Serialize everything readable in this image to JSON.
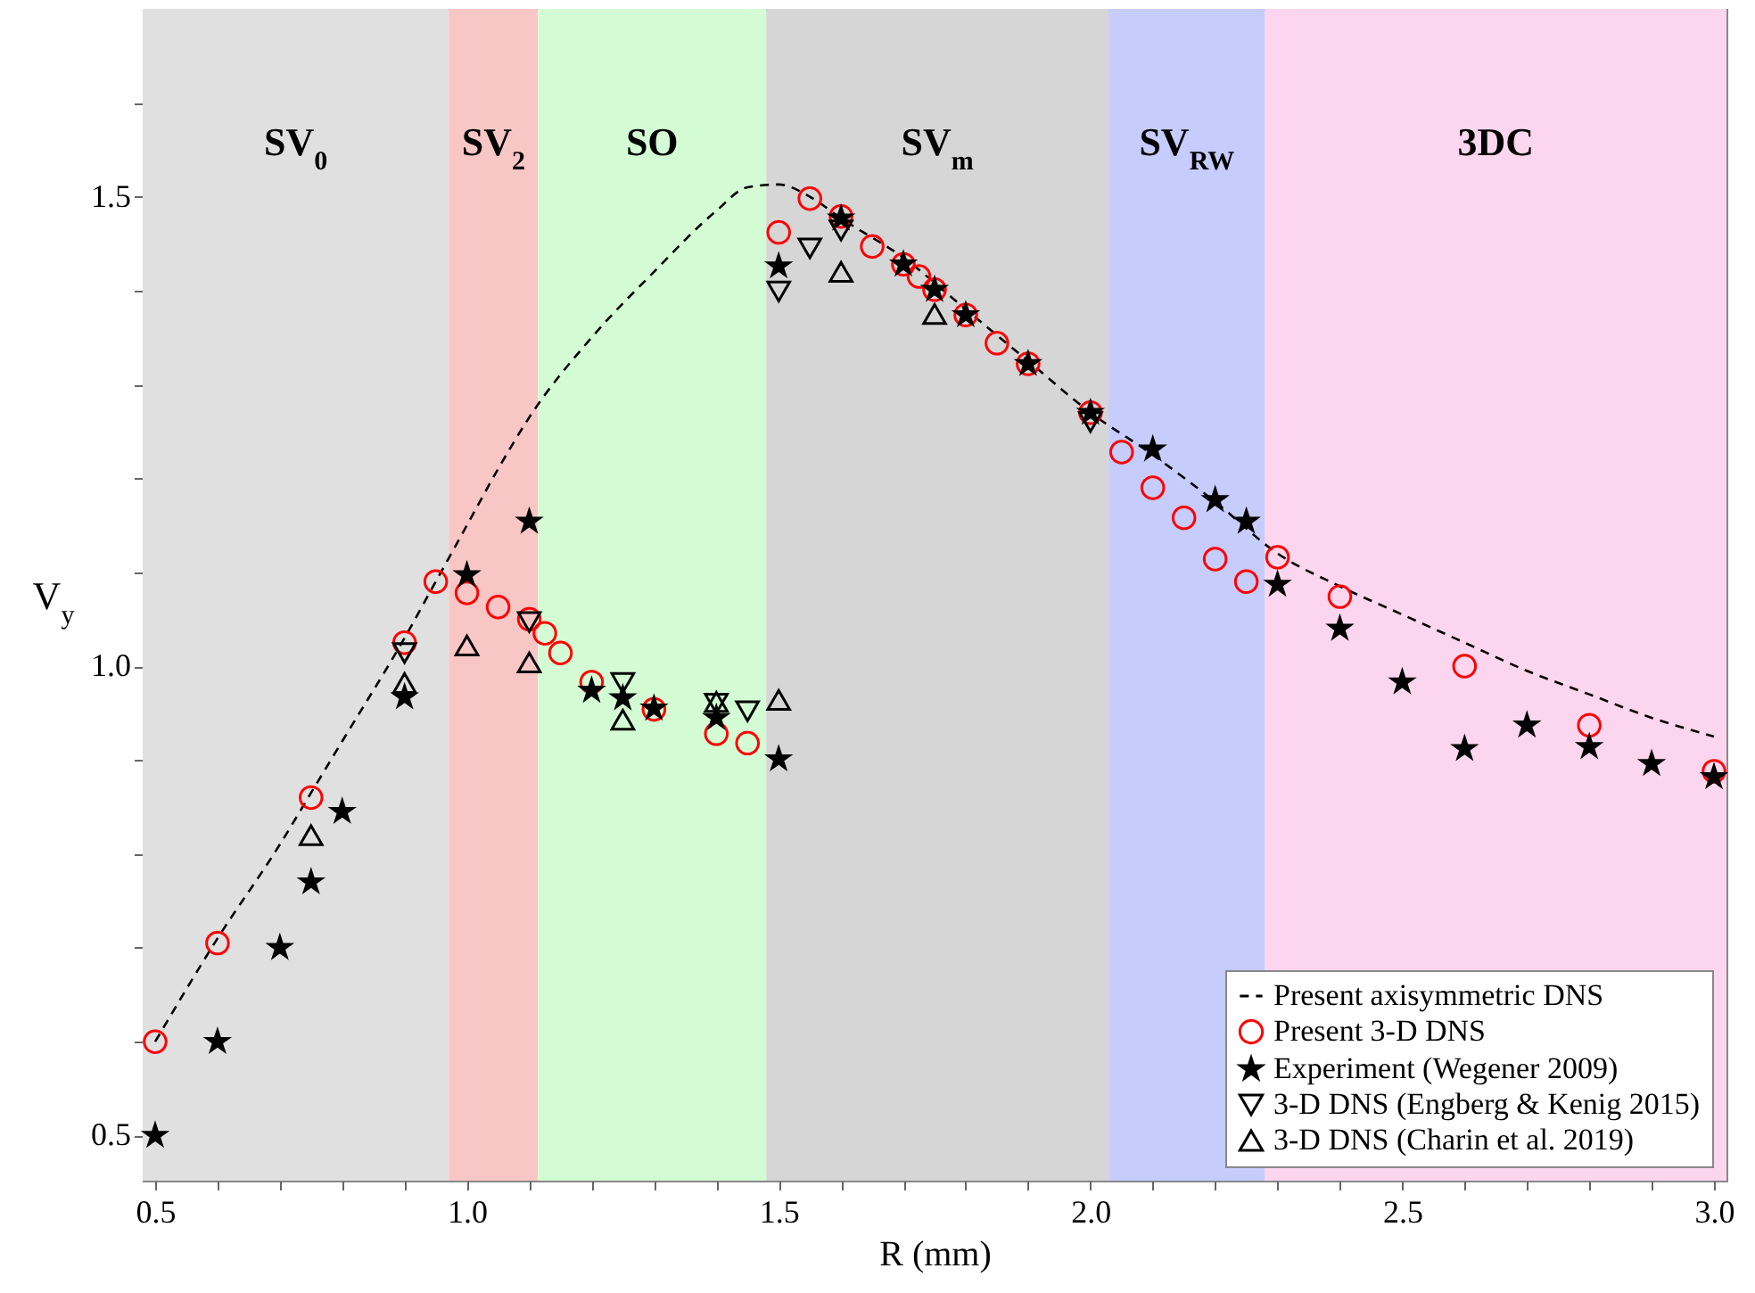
{
  "chart_data": {
    "type": "scatter",
    "xlabel": "R (mm)",
    "ylabel": "V$_{y}$",
    "xlim": [
      0.48,
      3.02
    ],
    "ylim": [
      0.452,
      1.7
    ],
    "xticks": [
      0.5,
      {
        "value": 0.6,
        "label": null
      },
      {
        "value": 0.7,
        "label": null
      },
      {
        "value": 0.8,
        "label": null
      },
      {
        "value": 0.9,
        "label": null
      },
      {
        "value": 1.0,
        "label": "1.0"
      },
      {
        "value": 1.1,
        "label": null
      },
      {
        "value": 1.2,
        "label": null
      },
      {
        "value": 1.3,
        "label": null
      },
      {
        "value": 1.4,
        "label": null
      },
      1.5,
      {
        "value": 1.6,
        "label": null
      },
      {
        "value": 1.7,
        "label": null
      },
      {
        "value": 1.8,
        "label": null
      },
      {
        "value": 1.9,
        "label": null
      },
      {
        "value": 2.0,
        "label": "2.0"
      },
      {
        "value": 2.1,
        "label": null
      },
      {
        "value": 2.2,
        "label": null
      },
      {
        "value": 2.3,
        "label": null
      },
      {
        "value": 2.4,
        "label": null
      },
      2.5,
      {
        "value": 2.6,
        "label": null
      },
      {
        "value": 2.7,
        "label": null
      },
      {
        "value": 2.8,
        "label": null
      },
      {
        "value": 2.9,
        "label": null
      },
      {
        "value": 3.0,
        "label": "3.0"
      }
    ],
    "yticks": [
      0.5,
      {
        "value": 0.6,
        "label": null
      },
      {
        "value": 0.7,
        "label": null
      },
      {
        "value": 0.8,
        "label": null
      },
      {
        "value": 0.9,
        "label": null
      },
      {
        "value": 1.0,
        "label": "1.0"
      },
      {
        "value": 1.1,
        "label": null
      },
      {
        "value": 1.2,
        "label": null
      },
      {
        "value": 1.3,
        "label": null
      },
      {
        "value": 1.4,
        "label": null
      },
      1.5,
      {
        "value": 1.6,
        "label": null
      }
    ],
    "grid": false,
    "legend": "bottom right",
    "bands": [
      {
        "axis": "x",
        "from": 0.48,
        "to": 0.971,
        "label": "SV$_{0}$",
        "color": "#e0e0e0"
      },
      {
        "axis": "x",
        "from": 0.971,
        "to": 1.114,
        "label": "SV$_{2}$",
        "color": "#f9c6c6"
      },
      {
        "axis": "x",
        "from": 1.114,
        "to": 1.48,
        "label": "SO",
        "color": "#d4fcd4"
      },
      {
        "axis": "x",
        "from": 1.48,
        "to": 2.029,
        "label": "SV$_{m}$",
        "color": "#d6d6d6"
      },
      {
        "axis": "x",
        "from": 2.029,
        "to": 2.28,
        "label": "SV$_{RW}$",
        "color": "#c6ccfc"
      },
      {
        "axis": "x",
        "from": 2.28,
        "to": 3.02,
        "label": "3DC",
        "color": "#fcd6ee"
      }
    ],
    "series": [
      {
        "name": "Present axisymmetric DNS",
        "type": "line",
        "line_style": "dashed",
        "marker": "none",
        "color": "#000000",
        "x": [
          0.5,
          0.6,
          0.7,
          0.75,
          0.8,
          0.9,
          0.95,
          1.0,
          1.05,
          1.1,
          1.2,
          1.3,
          1.4,
          1.45,
          1.5,
          1.55,
          1.6,
          1.7,
          1.8,
          1.9,
          2.0,
          2.1,
          2.2,
          2.3,
          2.4,
          2.5,
          2.6,
          2.7,
          2.8,
          2.9,
          3.0
        ],
        "values": [
          0.6,
          0.71,
          0.81,
          0.865,
          0.92,
          1.03,
          1.09,
          1.15,
          1.21,
          1.265,
          1.35,
          1.42,
          1.485,
          1.51,
          1.513,
          1.5,
          1.477,
          1.435,
          1.38,
          1.325,
          1.27,
          1.225,
          1.175,
          1.12,
          1.085,
          1.055,
          1.025,
          0.995,
          0.97,
          0.945,
          0.925
        ]
      },
      {
        "name": "Present 3-D DNS",
        "marker": "circle",
        "color": "#ff0000",
        "x": [
          0.5,
          0.6,
          0.75,
          0.9,
          0.95,
          1.0,
          1.05,
          1.1,
          1.125,
          1.15,
          1.2,
          1.3,
          1.4,
          1.45,
          1.5,
          1.55,
          1.6,
          1.65,
          1.7,
          1.725,
          1.75,
          1.8,
          1.85,
          1.9,
          2.0,
          2.05,
          2.1,
          2.15,
          2.2,
          2.25,
          2.3,
          2.4,
          2.6,
          2.8,
          3.0
        ],
        "values": [
          0.6,
          0.705,
          0.86,
          1.025,
          1.09,
          1.078,
          1.063,
          1.05,
          1.035,
          1.014,
          0.983,
          0.954,
          0.928,
          0.918,
          1.462,
          1.498,
          1.479,
          1.447,
          1.428,
          1.415,
          1.401,
          1.374,
          1.344,
          1.322,
          1.27,
          1.228,
          1.19,
          1.158,
          1.114,
          1.09,
          1.116,
          1.074,
          1.0,
          0.937,
          0.888
        ]
      },
      {
        "name": "Experiment  (Wegener 2009)",
        "marker": "star",
        "color": "#000000",
        "x": [
          0.5,
          0.6,
          0.7,
          0.75,
          0.8,
          0.9,
          1.0,
          1.1,
          1.2,
          1.25,
          1.3,
          1.4,
          1.5,
          1.5,
          1.6,
          1.7,
          1.75,
          1.8,
          1.9,
          2.0,
          2.1,
          2.2,
          2.25,
          2.3,
          2.4,
          2.5,
          2.6,
          2.7,
          2.8,
          2.9,
          3.0
        ],
        "values": [
          0.5,
          0.6,
          0.7,
          0.77,
          0.845,
          0.967,
          1.097,
          1.154,
          0.974,
          0.966,
          0.955,
          0.945,
          0.901,
          1.426,
          1.477,
          1.428,
          1.401,
          1.374,
          1.322,
          1.27,
          1.231,
          1.177,
          1.154,
          1.087,
          1.04,
          0.983,
          0.912,
          0.937,
          0.914,
          0.896,
          0.882
        ]
      },
      {
        "name": "3-D DNS (Engberg & Kenig 2015)",
        "marker": "triangle-down",
        "color": "#000000",
        "x": [
          0.9,
          1.1,
          1.25,
          1.4,
          1.45,
          1.5,
          1.55,
          1.6,
          2.0
        ],
        "values": [
          1.014,
          1.047,
          0.982,
          0.96,
          0.952,
          1.399,
          1.445,
          1.464,
          1.26
        ]
      },
      {
        "name": "3-D DNS (Charin et al. 2019)",
        "marker": "triangle-up",
        "color": "#000000",
        "x": [
          0.75,
          0.9,
          1.0,
          1.1,
          1.25,
          1.4,
          1.5,
          1.6,
          1.75
        ],
        "values": [
          0.82,
          0.982,
          1.022,
          1.004,
          0.943,
          0.962,
          0.964,
          1.42,
          1.375
        ]
      }
    ]
  }
}
